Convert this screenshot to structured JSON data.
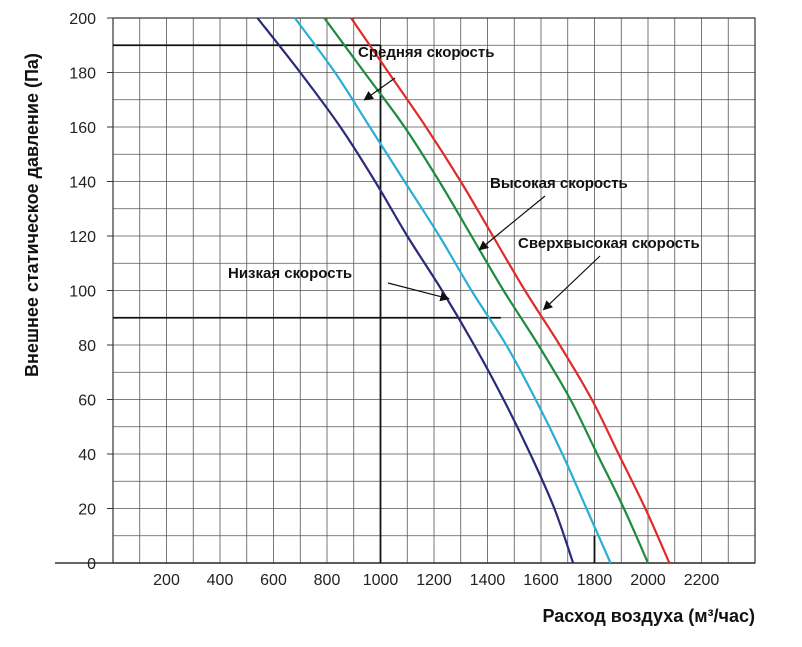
{
  "chart_data": {
    "type": "line",
    "title": "",
    "xlabel": "Расход воздуха (м³/час)",
    "ylabel": "Внешнее статическое давление (Па)",
    "xlim": [
      0,
      2400
    ],
    "ylim": [
      0,
      200
    ],
    "x_ticks": [
      200,
      400,
      600,
      800,
      1000,
      1200,
      1400,
      1600,
      1800,
      2000,
      2200
    ],
    "y_ticks": [
      0,
      20,
      40,
      60,
      80,
      100,
      120,
      140,
      160,
      180,
      200
    ],
    "grid": true,
    "series": [
      {
        "name": "Низкая скорость",
        "color": "#2a2a7a",
        "x": [
          540,
          700,
          850,
          980,
          1100,
          1230,
          1350,
          1460,
          1560,
          1650,
          1720
        ],
        "y": [
          200,
          180,
          160,
          140,
          120,
          100,
          80,
          60,
          40,
          20,
          0
        ]
      },
      {
        "name": "Средняя скорость",
        "color": "#2aaed6",
        "x": [
          680,
          830,
          960,
          1090,
          1220,
          1340,
          1470,
          1580,
          1680,
          1770,
          1860
        ],
        "y": [
          200,
          180,
          160,
          140,
          120,
          100,
          80,
          60,
          40,
          20,
          0
        ]
      },
      {
        "name": "Высокая скорость",
        "color": "#1d8c3c",
        "x": [
          790,
          940,
          1090,
          1220,
          1340,
          1460,
          1590,
          1710,
          1810,
          1910,
          2000
        ],
        "y": [
          200,
          180,
          160,
          140,
          120,
          100,
          80,
          60,
          40,
          20,
          0
        ]
      },
      {
        "name": "Сверхвысокая скорость",
        "color": "#e02b2b",
        "x": [
          890,
          1030,
          1170,
          1300,
          1420,
          1540,
          1670,
          1790,
          1890,
          1990,
          2080
        ],
        "y": [
          200,
          180,
          160,
          140,
          120,
          100,
          80,
          60,
          40,
          20,
          0
        ]
      }
    ],
    "reference_lines": [
      {
        "axis": "y",
        "value": 190,
        "from": 0,
        "to": 1000
      },
      {
        "axis": "y",
        "value": 90,
        "from": 0,
        "to": 1450
      },
      {
        "axis": "x",
        "value": 1000,
        "from": 0,
        "to": 190
      },
      {
        "axis": "x",
        "value": 1800,
        "from": 0,
        "to": 10
      }
    ],
    "annotations": [
      {
        "text": "Средняя скорость",
        "series": "Средняя скорость"
      },
      {
        "text": "Высокая скорость",
        "series": "Высокая скорость"
      },
      {
        "text": "Сверхвысокая скорость",
        "series": "Сверхвысокая скорость"
      },
      {
        "text": "Низкая скорость",
        "series": "Низкая скорость"
      }
    ]
  }
}
